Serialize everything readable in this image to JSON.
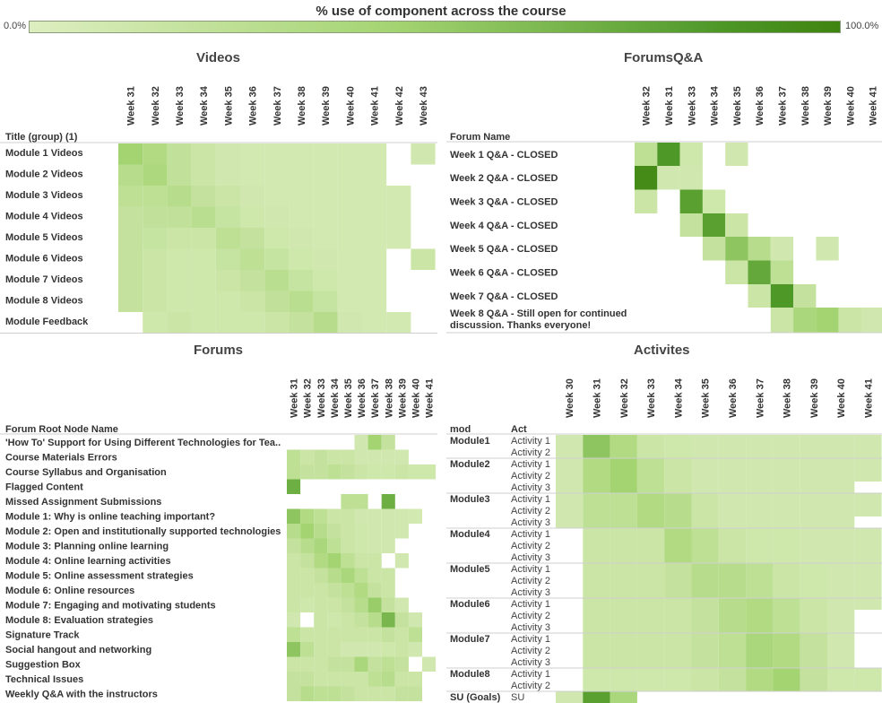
{
  "title": "% use of component across the course",
  "legend": {
    "min_label": "0.0%",
    "max_label": "100.0%",
    "low_color": "#ddeec0",
    "high_color": "#3f8410"
  },
  "chart_data": [
    {
      "type": "heatmap",
      "title": "Videos",
      "row_header": "Title (group) (1)",
      "columns": [
        "Week 31",
        "Week 32",
        "Week 33",
        "Week 34",
        "Week 35",
        "Week 36",
        "Week 37",
        "Week 38",
        "Week 39",
        "Week 40",
        "Week 41",
        "Week 42",
        "Week 43"
      ],
      "rows": [
        "Module 1 Videos",
        "Module 2 Videos",
        "Module 3 Videos",
        "Module 4 Videos",
        "Module 5 Videos",
        "Module 6 Videos",
        "Module 7 Videos",
        "Module 8 Videos",
        "Module Feedback"
      ],
      "values": [
        [
          45,
          35,
          22,
          15,
          10,
          8,
          8,
          8,
          8,
          8,
          8,
          null,
          10
        ],
        [
          30,
          38,
          22,
          15,
          10,
          8,
          8,
          8,
          8,
          8,
          8,
          null,
          null
        ],
        [
          25,
          25,
          30,
          20,
          15,
          10,
          8,
          8,
          8,
          8,
          8,
          8,
          null
        ],
        [
          20,
          22,
          22,
          28,
          18,
          12,
          10,
          8,
          8,
          8,
          8,
          8,
          null
        ],
        [
          20,
          18,
          15,
          15,
          25,
          20,
          12,
          10,
          8,
          8,
          8,
          8,
          null
        ],
        [
          20,
          15,
          12,
          12,
          18,
          25,
          18,
          12,
          10,
          8,
          8,
          null,
          15
        ],
        [
          20,
          15,
          12,
          12,
          15,
          20,
          28,
          18,
          12,
          8,
          8,
          null,
          null
        ],
        [
          20,
          15,
          12,
          12,
          12,
          15,
          22,
          28,
          18,
          8,
          8,
          null,
          null
        ],
        [
          null,
          12,
          15,
          12,
          12,
          12,
          15,
          20,
          30,
          10,
          8,
          8,
          null
        ]
      ]
    },
    {
      "type": "heatmap",
      "title": "ForumsQ&A",
      "row_header": "Forum Name",
      "columns": [
        "Week 32",
        "Week 31",
        "Week 33",
        "Week 34",
        "Week 35",
        "Week 36",
        "Week 37",
        "Week 38",
        "Week 39",
        "Week 40",
        "Week 41"
      ],
      "rows": [
        "Week 1 Q&A - CLOSED",
        "Week 2 Q&A - CLOSED",
        "Week 3 Q&A - CLOSED",
        "Week 4 Q&A - CLOSED",
        "Week 5 Q&A - CLOSED",
        "Week 6 Q&A - CLOSED",
        "Week 7 Q&A - CLOSED",
        "Week 8 Q&A - Still open for continued discussion. Thanks everyone!"
      ],
      "values": [
        [
          25,
          85,
          12,
          null,
          10,
          null,
          null,
          null,
          null,
          null,
          null
        ],
        [
          95,
          10,
          10,
          null,
          null,
          null,
          null,
          null,
          null,
          null,
          null
        ],
        [
          15,
          null,
          80,
          12,
          null,
          null,
          null,
          null,
          null,
          null,
          null
        ],
        [
          null,
          null,
          20,
          80,
          15,
          null,
          null,
          null,
          null,
          null,
          null
        ],
        [
          null,
          null,
          null,
          20,
          55,
          30,
          10,
          null,
          10,
          null,
          null
        ],
        [
          null,
          null,
          null,
          null,
          15,
          75,
          25,
          null,
          null,
          null,
          null
        ],
        [
          null,
          null,
          null,
          null,
          null,
          15,
          85,
          20,
          null,
          null,
          null
        ],
        [
          null,
          null,
          null,
          null,
          null,
          null,
          15,
          40,
          45,
          15,
          10
        ]
      ]
    },
    {
      "type": "heatmap",
      "title": "Forums",
      "row_header": "Forum Root Node Name",
      "columns": [
        "Week 31",
        "Week 32",
        "Week 33",
        "Week 34",
        "Week 35",
        "Week 36",
        "Week 37",
        "Week 38",
        "Week 39",
        "Week 40",
        "Week 41"
      ],
      "rows": [
        "'How To' Support for Using Different Technologies for Tea..",
        "Course Materials Errors",
        "Course Syllabus and Organisation",
        "Flagged Content",
        "Missed Assignment Submissions",
        "Module 1: Why is online teaching important?",
        "Module 2: Open and institutionally supported technologies",
        "Module 3: Planning online learning",
        "Module 4: Online learning activities",
        "Module 5: Online assessment strategies",
        "Module 6: Online resources",
        "Module 7: Engaging and motivating students",
        "Module 8: Evaluation strategies",
        "Signature Track",
        "Social hangout and networking",
        "Suggestion Box",
        "Technical Issues",
        "Weekly Q&A with the instructors"
      ],
      "values": [
        [
          null,
          null,
          null,
          null,
          null,
          10,
          45,
          20,
          null,
          null,
          null
        ],
        [
          25,
          15,
          20,
          15,
          15,
          10,
          10,
          10,
          10,
          null,
          null
        ],
        [
          25,
          20,
          20,
          25,
          20,
          15,
          12,
          12,
          15,
          12,
          12
        ],
        [
          70,
          null,
          null,
          null,
          null,
          null,
          null,
          null,
          null,
          null,
          null
        ],
        [
          null,
          null,
          null,
          null,
          25,
          25,
          null,
          70,
          null,
          null,
          null
        ],
        [
          55,
          35,
          25,
          15,
          15,
          10,
          10,
          10,
          10,
          8,
          null
        ],
        [
          30,
          45,
          30,
          20,
          15,
          12,
          10,
          10,
          10,
          null,
          null
        ],
        [
          20,
          30,
          40,
          25,
          15,
          12,
          10,
          10,
          null,
          null,
          null
        ],
        [
          15,
          20,
          35,
          45,
          25,
          15,
          15,
          null,
          10,
          null,
          null
        ],
        [
          15,
          15,
          20,
          30,
          40,
          25,
          15,
          15,
          null,
          null,
          null
        ],
        [
          15,
          15,
          15,
          20,
          25,
          35,
          20,
          15,
          null,
          null,
          null
        ],
        [
          15,
          12,
          15,
          15,
          20,
          30,
          50,
          20,
          10,
          null,
          null
        ],
        [
          10,
          null,
          15,
          12,
          15,
          20,
          30,
          65,
          20,
          10,
          null
        ],
        [
          25,
          15,
          15,
          15,
          15,
          15,
          15,
          20,
          15,
          25,
          null
        ],
        [
          55,
          25,
          15,
          15,
          10,
          10,
          10,
          12,
          15,
          10,
          null
        ],
        [
          15,
          15,
          15,
          20,
          20,
          40,
          20,
          25,
          20,
          null,
          10
        ],
        [
          20,
          20,
          15,
          15,
          15,
          15,
          25,
          30,
          15,
          15,
          null
        ],
        [
          20,
          30,
          25,
          25,
          20,
          15,
          15,
          15,
          20,
          20,
          null
        ]
      ]
    },
    {
      "type": "heatmap",
      "title": "Activites",
      "row_header_1": "mod",
      "row_header_2": "Act",
      "columns": [
        "Week 30",
        "Week 31",
        "Week 32",
        "Week 33",
        "Week 34",
        "Week 35",
        "Week 36",
        "Week 37",
        "Week 38",
        "Week 39",
        "Week 40",
        "Week 41"
      ],
      "groups": [
        {
          "name": "Module1",
          "rows": [
            "Activity 1",
            "Activity 2"
          ]
        },
        {
          "name": "Module2",
          "rows": [
            "Activity 1",
            "Activity 2",
            "Activity 3"
          ]
        },
        {
          "name": "Module3",
          "rows": [
            "Activity 1",
            "Activity 2",
            "Activity 3"
          ]
        },
        {
          "name": "Module4",
          "rows": [
            "Activity 1",
            "Activity 2",
            "Activity 3"
          ]
        },
        {
          "name": "Module5",
          "rows": [
            "Activity 1",
            "Activity 2",
            "Activity 3"
          ]
        },
        {
          "name": "Module6",
          "rows": [
            "Activity 1",
            "Activity 2",
            "Activity 3"
          ]
        },
        {
          "name": "Module7",
          "rows": [
            "Activity 1",
            "Activity 2",
            "Activity 3"
          ]
        },
        {
          "name": "Module8",
          "rows": [
            "Activity 1",
            "Activity 2"
          ]
        },
        {
          "name": "SU (Goals)",
          "rows": [
            "SU"
          ]
        }
      ],
      "values": [
        [
          10,
          55,
          35,
          15,
          12,
          10,
          10,
          10,
          10,
          10,
          10,
          10
        ],
        [
          10,
          55,
          35,
          15,
          12,
          10,
          10,
          10,
          10,
          10,
          10,
          10
        ],
        [
          10,
          35,
          45,
          25,
          15,
          10,
          10,
          10,
          10,
          10,
          10,
          10
        ],
        [
          10,
          35,
          45,
          25,
          15,
          10,
          10,
          10,
          10,
          10,
          10,
          10
        ],
        [
          10,
          35,
          45,
          25,
          15,
          10,
          10,
          10,
          10,
          10,
          10,
          null
        ],
        [
          10,
          25,
          25,
          35,
          30,
          15,
          10,
          10,
          10,
          10,
          10,
          10
        ],
        [
          10,
          25,
          25,
          35,
          30,
          15,
          10,
          10,
          10,
          10,
          10,
          10
        ],
        [
          10,
          25,
          25,
          35,
          30,
          15,
          10,
          10,
          10,
          10,
          10,
          null
        ],
        [
          null,
          15,
          15,
          15,
          35,
          25,
          15,
          12,
          12,
          10,
          10,
          10
        ],
        [
          null,
          15,
          15,
          15,
          35,
          25,
          15,
          12,
          12,
          10,
          10,
          10
        ],
        [
          null,
          15,
          15,
          15,
          35,
          25,
          15,
          12,
          12,
          10,
          10,
          10
        ],
        [
          null,
          15,
          15,
          15,
          20,
          30,
          30,
          25,
          15,
          12,
          10,
          10
        ],
        [
          null,
          15,
          15,
          15,
          20,
          30,
          30,
          25,
          15,
          12,
          10,
          10
        ],
        [
          null,
          15,
          15,
          15,
          20,
          30,
          30,
          25,
          15,
          12,
          10,
          10
        ],
        [
          null,
          15,
          15,
          15,
          15,
          20,
          30,
          35,
          25,
          15,
          10,
          10
        ],
        [
          null,
          15,
          15,
          15,
          15,
          20,
          30,
          35,
          25,
          15,
          10,
          null
        ],
        [
          null,
          15,
          15,
          15,
          15,
          20,
          30,
          35,
          25,
          15,
          10,
          null
        ],
        [
          null,
          15,
          15,
          15,
          15,
          20,
          25,
          40,
          35,
          20,
          10,
          null
        ],
        [
          null,
          15,
          15,
          15,
          15,
          20,
          25,
          40,
          35,
          20,
          10,
          null
        ],
        [
          null,
          15,
          15,
          15,
          15,
          20,
          25,
          40,
          35,
          20,
          10,
          null
        ],
        [
          null,
          12,
          12,
          12,
          12,
          15,
          20,
          35,
          45,
          20,
          12,
          12
        ],
        [
          null,
          12,
          12,
          12,
          12,
          15,
          20,
          35,
          45,
          20,
          12,
          12
        ],
        [
          10,
          80,
          40,
          null,
          null,
          null,
          null,
          null,
          null,
          null,
          null,
          null
        ]
      ]
    }
  ]
}
